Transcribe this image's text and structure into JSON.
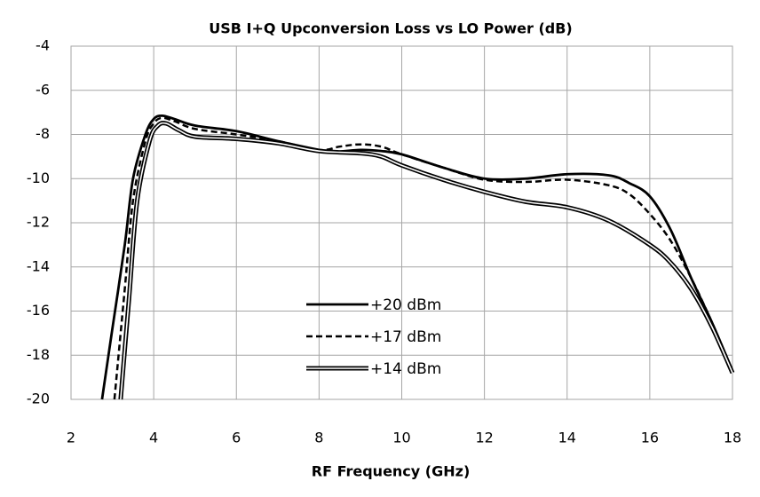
{
  "chart_data": {
    "type": "line",
    "title": "USB I+Q Upconversion Loss vs LO Power (dB)",
    "x_label": "RF Frequency (GHz)",
    "xlim": [
      2,
      18
    ],
    "ylim": [
      -20,
      -4
    ],
    "xticks": [
      2,
      4,
      6,
      8,
      10,
      12,
      14,
      16,
      18
    ],
    "yticks": [
      -4,
      -6,
      -8,
      -10,
      -12,
      -14,
      -16,
      -18,
      -20
    ],
    "grid": true,
    "legend": "lower center",
    "series": [
      {
        "name": "+20 dBm",
        "color": "#000000",
        "style": "solid",
        "x": [
          2.75,
          3.0,
          3.3,
          3.5,
          3.8,
          4.0,
          4.2,
          4.5,
          5,
          6,
          7,
          8,
          8.3,
          9,
          9.5,
          10,
          11,
          12,
          13,
          14,
          15,
          15.5,
          16,
          16.5,
          17,
          17.5,
          18
        ],
        "values": [
          -20,
          -16.8,
          -13,
          -10,
          -8,
          -7.3,
          -7.15,
          -7.3,
          -7.6,
          -7.85,
          -8.3,
          -8.7,
          -8.8,
          -8.7,
          -8.75,
          -8.9,
          -9.5,
          -10.0,
          -10.0,
          -9.8,
          -9.85,
          -10.2,
          -10.8,
          -12.3,
          -14.5,
          -16.5,
          -18.7
        ]
      },
      {
        "name": "+17 dBm",
        "color": "#000000",
        "style": "dashed",
        "x": [
          3.05,
          3.3,
          3.5,
          3.8,
          4.0,
          4.2,
          4.5,
          5,
          6,
          7,
          8,
          8.5,
          9,
          9.5,
          10,
          11,
          12,
          13,
          14,
          15,
          15.5,
          16,
          16.5,
          17,
          17.5,
          18
        ],
        "values": [
          -20,
          -15,
          -11,
          -8.3,
          -7.5,
          -7.25,
          -7.4,
          -7.75,
          -8.0,
          -8.3,
          -8.7,
          -8.55,
          -8.45,
          -8.55,
          -8.9,
          -9.5,
          -10.05,
          -10.15,
          -10.05,
          -10.3,
          -10.7,
          -11.6,
          -12.8,
          -14.5,
          -16.5,
          -18.7
        ]
      },
      {
        "name": "+14 dBm",
        "color": "#000000",
        "style": "double",
        "x": [
          3.2,
          3.4,
          3.6,
          3.9,
          4.1,
          4.3,
          4.6,
          5,
          6,
          7,
          8,
          9,
          9.5,
          10,
          11,
          12,
          13,
          14,
          15,
          16,
          16.5,
          17,
          17.5,
          18
        ],
        "values": [
          -20,
          -15.5,
          -11,
          -8.3,
          -7.6,
          -7.5,
          -7.8,
          -8.1,
          -8.2,
          -8.4,
          -8.75,
          -8.85,
          -9.0,
          -9.4,
          -10.05,
          -10.6,
          -11.05,
          -11.3,
          -11.9,
          -13.0,
          -13.8,
          -15.0,
          -16.7,
          -18.8
        ]
      }
    ]
  }
}
